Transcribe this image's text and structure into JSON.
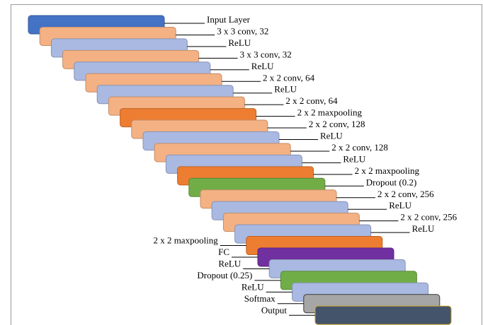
{
  "diagram": {
    "colors": {
      "input": "#4472C4",
      "conv": "#F4B183",
      "relu": "#A9B9E2",
      "maxpool": "#ED7D31",
      "dropout": "#70AD47",
      "fc": "#7030A0",
      "softmax": "#A6A6A6",
      "output": "#44546A"
    },
    "layers": [
      {
        "label": "Input Layer",
        "kind": "input",
        "side": "right"
      },
      {
        "label": "3 x 3 conv, 32",
        "kind": "conv",
        "side": "right"
      },
      {
        "label": "ReLU",
        "kind": "relu",
        "side": "right"
      },
      {
        "label": "3 x 3 conv, 32",
        "kind": "conv",
        "side": "right"
      },
      {
        "label": "ReLU",
        "kind": "relu",
        "side": "right"
      },
      {
        "label": "2 x 2 conv, 64",
        "kind": "conv",
        "side": "right"
      },
      {
        "label": "ReLU",
        "kind": "relu",
        "side": "right"
      },
      {
        "label": "2 x 2 conv, 64",
        "kind": "conv",
        "side": "right"
      },
      {
        "label": "2 x 2 maxpooling",
        "kind": "maxpool",
        "side": "right"
      },
      {
        "label": "2 x 2 conv, 128",
        "kind": "conv",
        "side": "right"
      },
      {
        "label": "ReLU",
        "kind": "relu",
        "side": "right"
      },
      {
        "label": "2 x 2 conv, 128",
        "kind": "conv",
        "side": "right"
      },
      {
        "label": "ReLU",
        "kind": "relu",
        "side": "right"
      },
      {
        "label": "2 x 2 maxpooling",
        "kind": "maxpool",
        "side": "right"
      },
      {
        "label": "Dropout (0.2)",
        "kind": "dropout",
        "side": "right"
      },
      {
        "label": "2 x 2 conv, 256",
        "kind": "conv",
        "side": "right"
      },
      {
        "label": "ReLU",
        "kind": "relu",
        "side": "right"
      },
      {
        "label": "2 x 2 conv, 256",
        "kind": "conv",
        "side": "right"
      },
      {
        "label": "ReLU",
        "kind": "relu",
        "side": "right"
      },
      {
        "label": "2 x 2 maxpooling",
        "kind": "maxpool",
        "side": "left"
      },
      {
        "label": "FC",
        "kind": "fc",
        "side": "left"
      },
      {
        "label": "ReLU",
        "kind": "relu",
        "side": "left"
      },
      {
        "label": "Dropout (0.25)",
        "kind": "dropout",
        "side": "left"
      },
      {
        "label": "ReLU",
        "kind": "relu",
        "side": "left"
      },
      {
        "label": "Softmax",
        "kind": "softmax",
        "side": "left"
      },
      {
        "label": "Output",
        "kind": "output",
        "side": "left"
      }
    ]
  }
}
